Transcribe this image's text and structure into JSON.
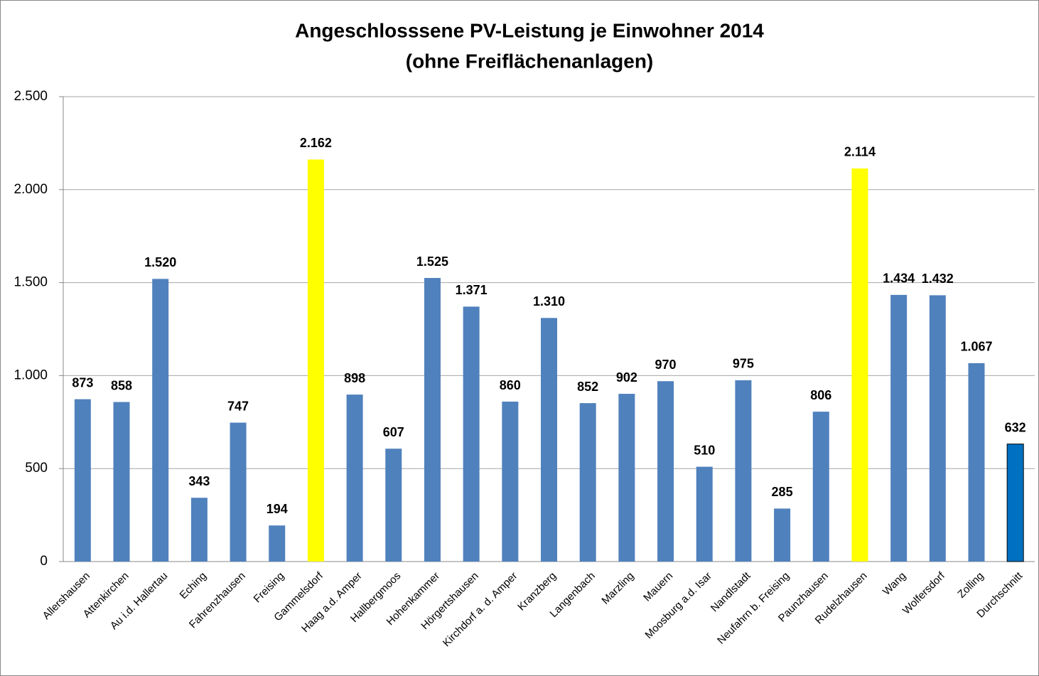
{
  "chart_data": {
    "type": "bar",
    "title": "Angeschlosssene PV-Leistung je Einwohner 2014",
    "subtitle": "(ohne Freiflächenanlagen)",
    "categories": [
      "Allershausen",
      "Attenkirchen",
      "Au i.d. Hallertau",
      "Eching",
      "Fahrenzhausen",
      "Freising",
      "Gammelsdorf",
      "Haag a.d. Amper",
      "Hallbergmoos",
      "Hohenkammer",
      "Hörgertshausen",
      "Kirchdorf a. d. Amper",
      "Kranzberg",
      "Langenbach",
      "Marzling",
      "Mauern",
      "Moosburg a.d. Isar",
      "Nandlstadt",
      "Neufahrn b. Freising",
      "Paunzhausen",
      "Rudelzhausen",
      "Wang",
      "Wolfersdorf",
      "Zolling",
      "Durchschnitt"
    ],
    "values": [
      873,
      858,
      1520,
      343,
      747,
      194,
      2162,
      898,
      607,
      1525,
      1371,
      860,
      1310,
      852,
      902,
      970,
      510,
      975,
      285,
      806,
      2114,
      1434,
      1432,
      1067,
      632
    ],
    "value_labels": [
      "873",
      "858",
      "1.520",
      "343",
      "747",
      "194",
      "2.162",
      "898",
      "607",
      "1.525",
      "1.371",
      "860",
      "1.310",
      "852",
      "902",
      "970",
      "510",
      "975",
      "285",
      "806",
      "2.114",
      "1.434",
      "1.432",
      "1.067",
      "632"
    ],
    "colors": [
      "#4f81bd",
      "#4f81bd",
      "#4f81bd",
      "#4f81bd",
      "#4f81bd",
      "#4f81bd",
      "#ffff00",
      "#4f81bd",
      "#4f81bd",
      "#4f81bd",
      "#4f81bd",
      "#4f81bd",
      "#4f81bd",
      "#4f81bd",
      "#4f81bd",
      "#4f81bd",
      "#4f81bd",
      "#4f81bd",
      "#4f81bd",
      "#4f81bd",
      "#ffff00",
      "#4f81bd",
      "#4f81bd",
      "#4f81bd",
      "#0070c0"
    ],
    "ylim": [
      0,
      2500
    ],
    "yticks": [
      0,
      500,
      {
        "value": 1000,
        "label": "1.000"
      },
      {
        "value": 1500,
        "label": "1.500"
      },
      {
        "value": 2000,
        "label": "2.000"
      },
      {
        "value": 2500,
        "label": "2.500"
      }
    ],
    "grid": true
  }
}
